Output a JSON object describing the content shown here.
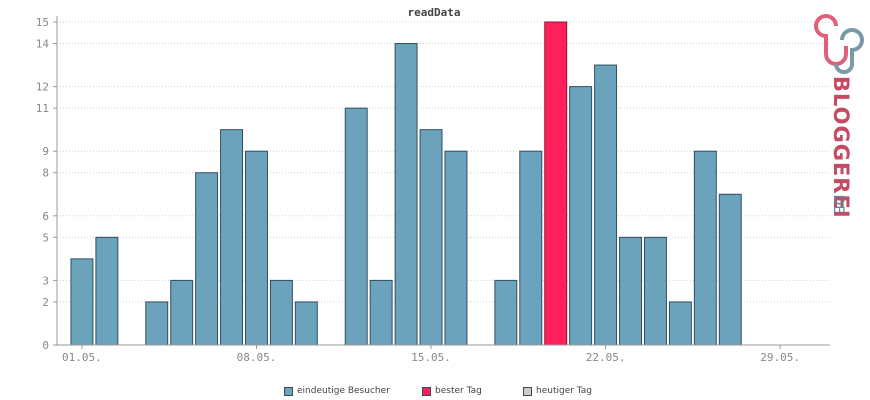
{
  "chart_data": {
    "type": "bar",
    "title": "readData",
    "y_ticks": [
      0,
      2,
      3,
      5,
      6,
      8,
      9,
      11,
      12,
      14,
      15
    ],
    "ylim": [
      0,
      15
    ],
    "x_tick_labels": [
      "01.05.",
      "08.05.",
      "15.05.",
      "22.05.",
      "29.05."
    ],
    "x_tick_days": [
      1,
      8,
      15,
      22,
      29
    ],
    "x_range_days": [
      0,
      31
    ],
    "grid": true,
    "categories": [
      "01.05.",
      "02.05.",
      "03.05.",
      "04.05.",
      "05.05.",
      "06.05.",
      "07.05.",
      "08.05.",
      "09.05.",
      "10.05.",
      "11.05.",
      "12.05.",
      "13.05.",
      "14.05.",
      "15.05.",
      "16.05.",
      "17.05.",
      "18.05.",
      "19.05.",
      "20.05.",
      "21.05.",
      "22.05.",
      "23.05.",
      "24.05.",
      "25.05.",
      "26.05.",
      "27.05.",
      "28.05.",
      "29.05.",
      "30.05.",
      "31.05."
    ],
    "days": [
      1,
      2,
      3,
      4,
      5,
      6,
      7,
      8,
      9,
      10,
      11,
      12,
      13,
      14,
      15,
      16,
      17,
      18,
      19,
      20,
      21,
      22,
      23,
      24,
      25,
      26,
      27,
      28,
      29,
      30,
      31
    ],
    "values": [
      4,
      5,
      0,
      2,
      3,
      8,
      10,
      9,
      3,
      2,
      0,
      11,
      3,
      14,
      10,
      9,
      0,
      3,
      9,
      15,
      12,
      13,
      5,
      5,
      2,
      9,
      7,
      0,
      0,
      0,
      0
    ],
    "best_day_index": 19,
    "colors": {
      "bar": "#6ba3bc",
      "bar_stroke": "#2f4f5f",
      "best": "#ff1f5a",
      "today": "#cccccc",
      "grid": "#cfcfcf",
      "axis": "#999999"
    },
    "legend": [
      {
        "label": "eindeutige Besucher",
        "color": "#6ba3bc"
      },
      {
        "label": "bester Tag",
        "color": "#ff1f5a"
      },
      {
        "label": "heutiger Tag",
        "color": "#cccccc"
      }
    ],
    "legend_position": "bottom"
  },
  "logo": {
    "text": "BLOGGEREI",
    "suffix": ".DE"
  }
}
